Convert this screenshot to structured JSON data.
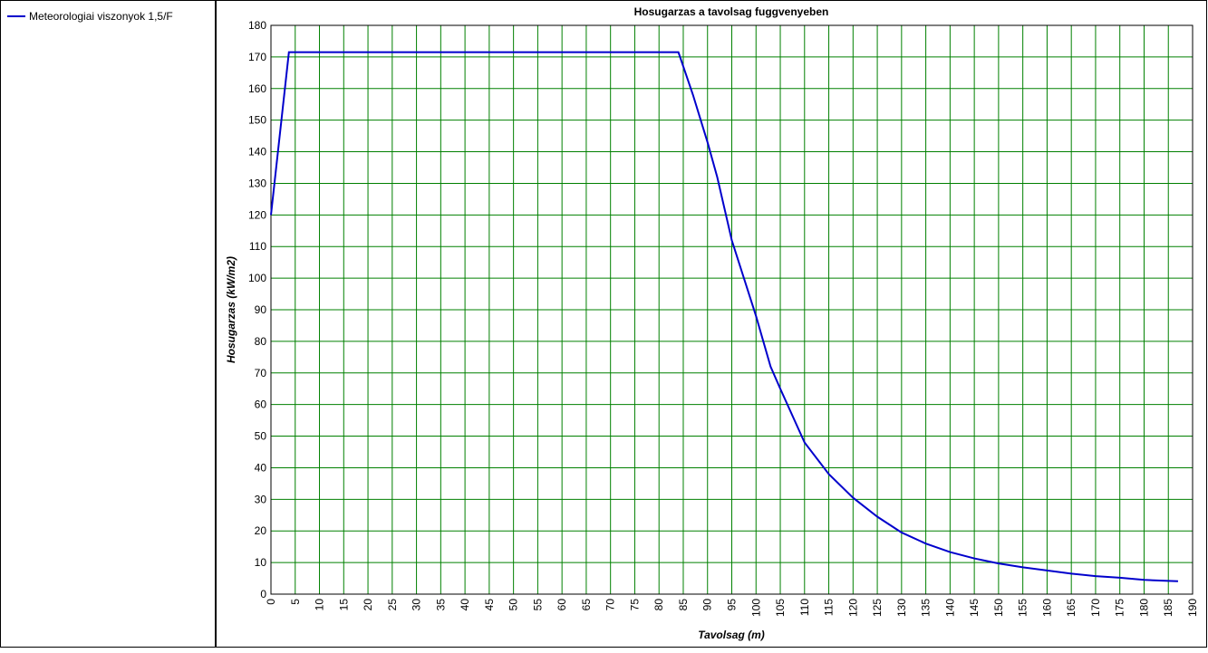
{
  "chart_data": {
    "type": "line",
    "title": "Hosugarzas a tavolsag fuggvenyeben",
    "x_label": "Tavolsag (m)",
    "y_label": "Hosugarzas (kW/m2)",
    "xlim": [
      0,
      190
    ],
    "ylim": [
      0,
      180
    ],
    "xticks": [
      0,
      5,
      10,
      15,
      20,
      25,
      30,
      35,
      40,
      45,
      50,
      55,
      60,
      65,
      70,
      75,
      80,
      85,
      90,
      95,
      100,
      105,
      110,
      115,
      120,
      125,
      130,
      135,
      140,
      145,
      150,
      155,
      160,
      165,
      170,
      175,
      180,
      185,
      190
    ],
    "yticks": [
      0,
      10,
      20,
      30,
      40,
      50,
      60,
      70,
      80,
      90,
      100,
      110,
      120,
      130,
      140,
      150,
      160,
      170,
      180
    ],
    "grid": true,
    "legend": "left",
    "x": [
      0,
      3.7,
      84,
      87,
      90,
      92,
      95,
      100,
      103,
      105,
      110,
      115,
      120,
      125,
      130,
      135,
      140,
      145,
      150,
      155,
      160,
      165,
      170,
      175,
      180,
      185,
      187
    ],
    "series": [
      {
        "name": "Meteorologiai viszonyok 1,5/F",
        "color": "#0000cc",
        "values": [
          120,
          171.5,
          171.5,
          158,
          143,
          132,
          112,
          88,
          72,
          65,
          48,
          38,
          30.5,
          24.5,
          19.5,
          16,
          13.3,
          11.3,
          9.7,
          8.5,
          7.5,
          6.5,
          5.7,
          5.2,
          4.5,
          4.2,
          4.1
        ]
      }
    ]
  }
}
